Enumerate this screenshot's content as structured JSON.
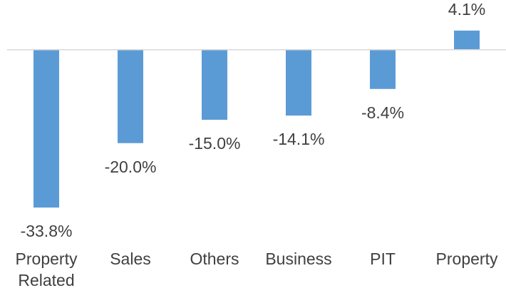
{
  "chart_data": {
    "type": "bar",
    "categories": [
      "Property Related",
      "Sales",
      "Others",
      "Business",
      "PIT",
      "Property"
    ],
    "values": [
      -33.8,
      -20.0,
      -15.0,
      -14.1,
      -8.4,
      4.1
    ],
    "value_labels": [
      "-33.8%",
      "-20.0%",
      "-15.0%",
      "-14.1%",
      "-8.4%",
      "4.1%"
    ],
    "color": "#5b9bd5",
    "ylim": [
      -35,
      5
    ],
    "grid": false
  }
}
